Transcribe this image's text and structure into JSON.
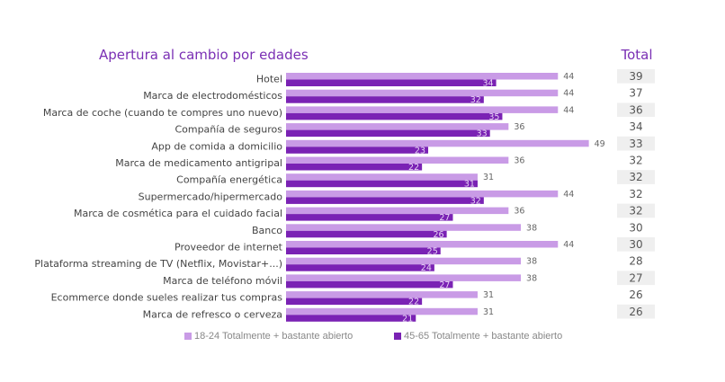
{
  "chart_data": {
    "type": "bar",
    "orientation": "horizontal",
    "title": "Apertura al cambio por edades",
    "total_header": "Total",
    "categories": [
      "Hotel",
      "Marca de electrodomésticos",
      "Marca de coche (cuando te compres uno nuevo)",
      "Compañía de seguros",
      "App de comida a domicilio",
      "Marca de medicamento antigripal",
      "Compañía energética",
      "Supermercado/hipermercado",
      "Marca de cosmética para el cuidado facial",
      "Banco",
      "Proveedor de internet",
      "Plataforma streaming de TV (Netflix, Movistar+...)",
      "Marca de teléfono móvil",
      "Ecommerce donde sueles realizar tus compras",
      "Marca de refresco o cerveza"
    ],
    "series": [
      {
        "name": "18-24 Totalmente + bastante abierto",
        "color": "#c99be6",
        "values": [
          44,
          44,
          44,
          36,
          49,
          36,
          31,
          44,
          36,
          38,
          44,
          38,
          38,
          31,
          31
        ]
      },
      {
        "name": "45-65 Totalmente + bastante abierto",
        "color": "#7a22b4",
        "values": [
          34,
          32,
          35,
          33,
          23,
          22,
          31,
          32,
          27,
          26,
          25,
          24,
          27,
          22,
          21
        ]
      }
    ],
    "totals": [
      "39",
      "37",
      "36",
      "34",
      "33",
      "32",
      "32",
      "32",
      "32",
      "30",
      "30",
      "28",
      "27",
      "26",
      "26"
    ],
    "shaded_totals": [
      true,
      false,
      true,
      false,
      true,
      false,
      true,
      false,
      true,
      false,
      true,
      false,
      true,
      false,
      true
    ],
    "xlim": [
      0,
      50
    ],
    "grid": false,
    "legend_position": "bottom"
  }
}
